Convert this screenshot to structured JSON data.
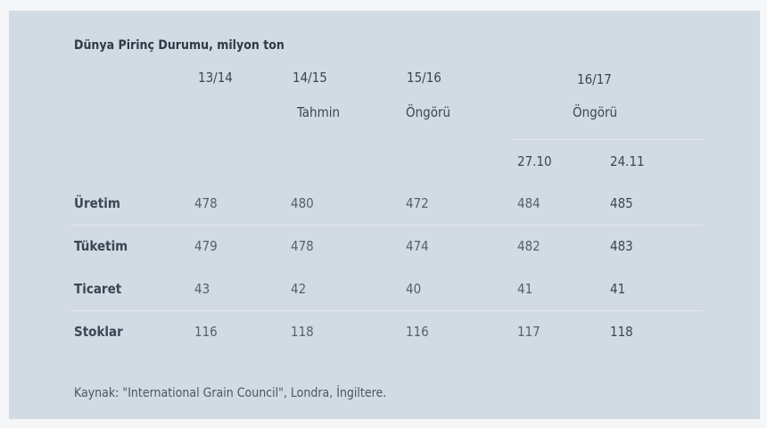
{
  "title": "Dünya Pirinç Durumu, milyon ton",
  "headers": [
    {
      "year": "13/14",
      "note": ""
    },
    {
      "year": "14/15",
      "note": "Tahmin"
    },
    {
      "year": "15/16",
      "note": "Öngörü"
    },
    {
      "year": "16/17",
      "note": "Öngörü",
      "sub": [
        "27.10",
        "24.11"
      ]
    }
  ],
  "rows": [
    {
      "label": "Üretim",
      "values": [
        "478",
        "480",
        "472",
        "484",
        "485"
      ]
    },
    {
      "label": "Tüketim",
      "values": [
        "479",
        "478",
        "474",
        "482",
        "483"
      ]
    },
    {
      "label": "Ticaret",
      "values": [
        "43",
        "42",
        "40",
        "41",
        "41"
      ]
    },
    {
      "label": "Stoklar",
      "values": [
        "116",
        "118",
        "116",
        "117",
        "118"
      ]
    }
  ],
  "source": "Kaynak: \"International Grain Council\", Londra, İngiltere."
}
